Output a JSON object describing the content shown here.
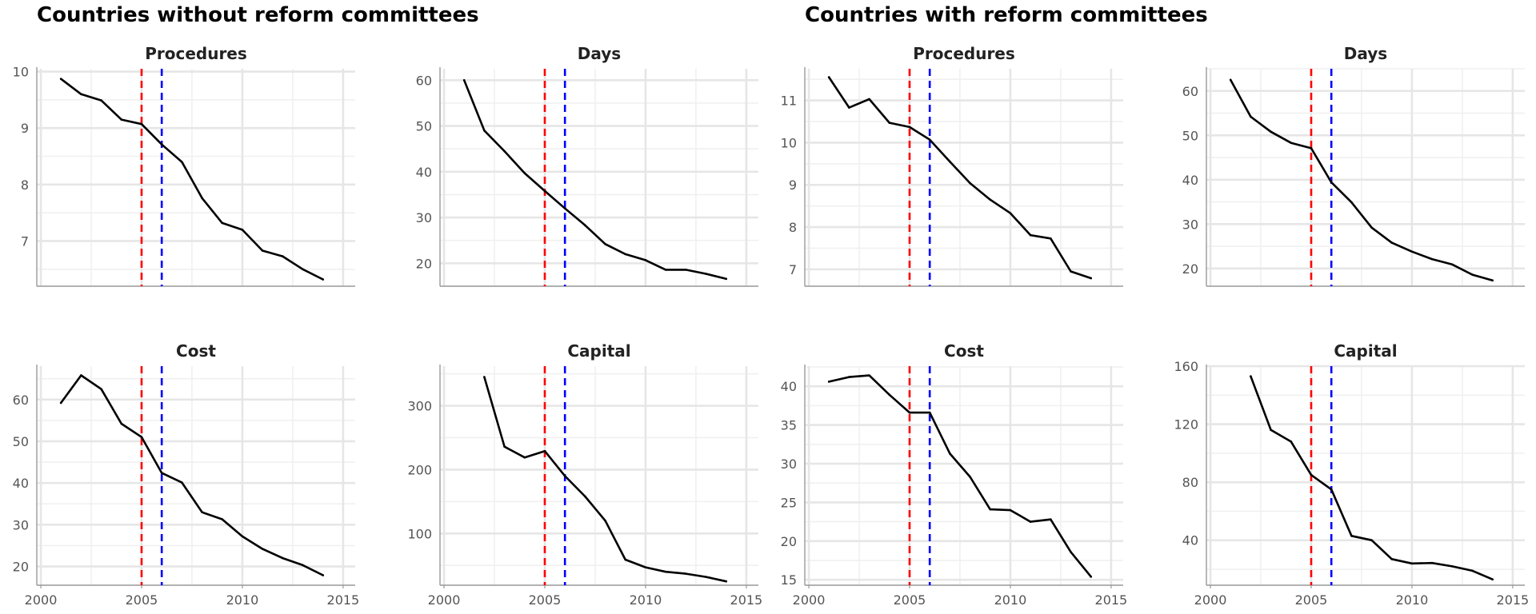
{
  "groups": [
    {
      "title": "Countries without reform committees"
    },
    {
      "title": "Countries with reform committees"
    }
  ],
  "colors": {
    "line": "#000000",
    "vline_red": "#ff0000",
    "vline_blue": "#0000ff",
    "grid_major": "#e6e6e6",
    "grid_minor": "#f0f0f0",
    "axis": "#999999"
  },
  "chart_data": [
    {
      "type": "line",
      "group": "Countries without reform committees",
      "title": "Procedures",
      "x": [
        2001,
        2002,
        2003,
        2004,
        2005,
        2006,
        2007,
        2008,
        2009,
        2010,
        2011,
        2012,
        2013,
        2014
      ],
      "values": [
        9.87,
        9.6,
        9.49,
        9.15,
        9.07,
        8.71,
        8.4,
        7.76,
        7.32,
        7.2,
        6.83,
        6.73,
        6.5,
        6.32
      ],
      "xlim": [
        1999.8,
        2015.6
      ],
      "ylim": [
        6.2,
        10.05
      ],
      "yticks": [
        7,
        8,
        9,
        10
      ],
      "xticks": [
        2000,
        2005,
        2010,
        2015
      ],
      "xticklabels": [
        "2000",
        "2005",
        "2010",
        "2015"
      ],
      "vlines": [
        {
          "x": 2005,
          "color": "red",
          "style": "dashed"
        },
        {
          "x": 2006,
          "color": "blue",
          "style": "dashed"
        }
      ],
      "show_xticklabels": false,
      "grid": true
    },
    {
      "type": "line",
      "group": "Countries without reform committees",
      "title": "Days",
      "x": [
        2001,
        2002,
        2003,
        2004,
        2005,
        2006,
        2007,
        2008,
        2009,
        2010,
        2011,
        2012,
        2013,
        2014
      ],
      "values": [
        60,
        49,
        44.5,
        39.7,
        35.8,
        32,
        28.3,
        24.2,
        22,
        20.7,
        18.6,
        18.6,
        17.7,
        16.6
      ],
      "xlim": [
        1999.8,
        2015.6
      ],
      "ylim": [
        15,
        62.5
      ],
      "yticks": [
        20,
        30,
        40,
        50,
        60
      ],
      "xticks": [
        2000,
        2005,
        2010,
        2015
      ],
      "xticklabels": [
        "2000",
        "2005",
        "2010",
        "2015"
      ],
      "vlines": [
        {
          "x": 2005,
          "color": "red",
          "style": "dashed"
        },
        {
          "x": 2006,
          "color": "blue",
          "style": "dashed"
        }
      ],
      "show_xticklabels": false,
      "grid": true
    },
    {
      "type": "line",
      "group": "Countries with reform committees",
      "title": "Procedures",
      "x": [
        2001,
        2002,
        2003,
        2004,
        2005,
        2006,
        2007,
        2008,
        2009,
        2010,
        2011,
        2012,
        2013,
        2014
      ],
      "values": [
        11.55,
        10.83,
        11.03,
        10.47,
        10.37,
        10.07,
        9.55,
        9.04,
        8.65,
        8.33,
        7.81,
        7.73,
        6.95,
        6.79
      ],
      "xlim": [
        1999.8,
        2015.6
      ],
      "ylim": [
        6.6,
        11.75
      ],
      "yticks": [
        7,
        8,
        9,
        10,
        11
      ],
      "xticks": [
        2000,
        2005,
        2010,
        2015
      ],
      "xticklabels": [
        "2000",
        "2005",
        "2010",
        "2015"
      ],
      "vlines": [
        {
          "x": 2005,
          "color": "red",
          "style": "dashed"
        },
        {
          "x": 2006,
          "color": "blue",
          "style": "dashed"
        }
      ],
      "show_xticklabels": false,
      "grid": true
    },
    {
      "type": "line",
      "group": "Countries with reform committees",
      "title": "Days",
      "x": [
        2001,
        2002,
        2003,
        2004,
        2005,
        2006,
        2007,
        2008,
        2009,
        2010,
        2011,
        2012,
        2013,
        2014
      ],
      "values": [
        62.5,
        54.2,
        50.8,
        48.3,
        47.1,
        39.4,
        34.9,
        29.2,
        25.8,
        23.8,
        22.1,
        20.9,
        18.6,
        17.3
      ],
      "xlim": [
        1999.8,
        2015.6
      ],
      "ylim": [
        16,
        65
      ],
      "yticks": [
        20,
        30,
        40,
        50,
        60
      ],
      "xticks": [
        2000,
        2005,
        2010,
        2015
      ],
      "xticklabels": [
        "2000",
        "2005",
        "2010",
        "2015"
      ],
      "vlines": [
        {
          "x": 2005,
          "color": "red",
          "style": "dashed"
        },
        {
          "x": 2006,
          "color": "blue",
          "style": "dashed"
        }
      ],
      "show_xticklabels": false,
      "grid": true
    },
    {
      "type": "line",
      "group": "Countries without reform committees",
      "title": "Cost",
      "x": [
        2001,
        2002,
        2003,
        2004,
        2005,
        2006,
        2007,
        2008,
        2009,
        2010,
        2011,
        2012,
        2013,
        2014
      ],
      "values": [
        59.2,
        65.8,
        62.5,
        54.2,
        51,
        42.4,
        40.1,
        33,
        31.3,
        27.2,
        24.2,
        22,
        20.3,
        17.9
      ],
      "xlim": [
        1999.8,
        2015.6
      ],
      "ylim": [
        15.5,
        68
      ],
      "yticks": [
        20,
        30,
        40,
        50,
        60
      ],
      "xticks": [
        2000,
        2005,
        2010,
        2015
      ],
      "xticklabels": [
        "2000",
        "2005",
        "2010",
        "2015"
      ],
      "vlines": [
        {
          "x": 2005,
          "color": "red",
          "style": "dashed"
        },
        {
          "x": 2006,
          "color": "blue",
          "style": "dashed"
        }
      ],
      "show_xticklabels": true,
      "grid": true
    },
    {
      "type": "line",
      "group": "Countries without reform committees",
      "title": "Capital",
      "x": [
        2002,
        2003,
        2004,
        2005,
        2006,
        2007,
        2008,
        2009,
        2010,
        2011,
        2012,
        2013,
        2014
      ],
      "values": [
        345,
        236,
        219,
        229,
        190,
        158,
        120,
        59,
        47,
        40,
        37,
        32,
        25
      ],
      "xlim": [
        1999.8,
        2015.6
      ],
      "ylim": [
        19,
        362
      ],
      "yticks": [
        100,
        200,
        300
      ],
      "xticks": [
        2000,
        2005,
        2010,
        2015
      ],
      "xticklabels": [
        "2000",
        "2005",
        "2010",
        "2015"
      ],
      "vlines": [
        {
          "x": 2005,
          "color": "red",
          "style": "dashed"
        },
        {
          "x": 2006,
          "color": "blue",
          "style": "dashed"
        }
      ],
      "show_xticklabels": true,
      "grid": true
    },
    {
      "type": "line",
      "group": "Countries with reform committees",
      "title": "Cost",
      "x": [
        2001,
        2002,
        2003,
        2004,
        2005,
        2006,
        2007,
        2008,
        2009,
        2010,
        2011,
        2012,
        2013,
        2014
      ],
      "values": [
        40.6,
        41.2,
        41.4,
        38.9,
        36.6,
        36.6,
        31.3,
        28.3,
        24.1,
        24,
        22.5,
        22.8,
        18.6,
        15.4
      ],
      "xlim": [
        1999.8,
        2015.6
      ],
      "ylim": [
        14.3,
        42.6
      ],
      "yticks": [
        15,
        20,
        25,
        30,
        35,
        40
      ],
      "xticks": [
        2000,
        2005,
        2010,
        2015
      ],
      "xticklabels": [
        "2000",
        "2005",
        "2010",
        "2015"
      ],
      "vlines": [
        {
          "x": 2005,
          "color": "red",
          "style": "dashed"
        },
        {
          "x": 2006,
          "color": "blue",
          "style": "dashed"
        }
      ],
      "show_xticklabels": true,
      "grid": true
    },
    {
      "type": "line",
      "group": "Countries with reform committees",
      "title": "Capital",
      "x": [
        2002,
        2003,
        2004,
        2005,
        2006,
        2007,
        2008,
        2009,
        2010,
        2011,
        2012,
        2013,
        2014
      ],
      "values": [
        153,
        116,
        108,
        85,
        75,
        43,
        40,
        27,
        24,
        24.3,
        22,
        19,
        13
      ],
      "xlim": [
        1999.8,
        2015.6
      ],
      "ylim": [
        9,
        160
      ],
      "yticks": [
        40,
        80,
        120,
        160
      ],
      "xticks": [
        2000,
        2005,
        2010,
        2015
      ],
      "xticklabels": [
        "2000",
        "2005",
        "2010",
        "2015"
      ],
      "vlines": [
        {
          "x": 2005,
          "color": "red",
          "style": "dashed"
        },
        {
          "x": 2006,
          "color": "blue",
          "style": "dashed"
        }
      ],
      "show_xticklabels": true,
      "grid": true
    }
  ]
}
